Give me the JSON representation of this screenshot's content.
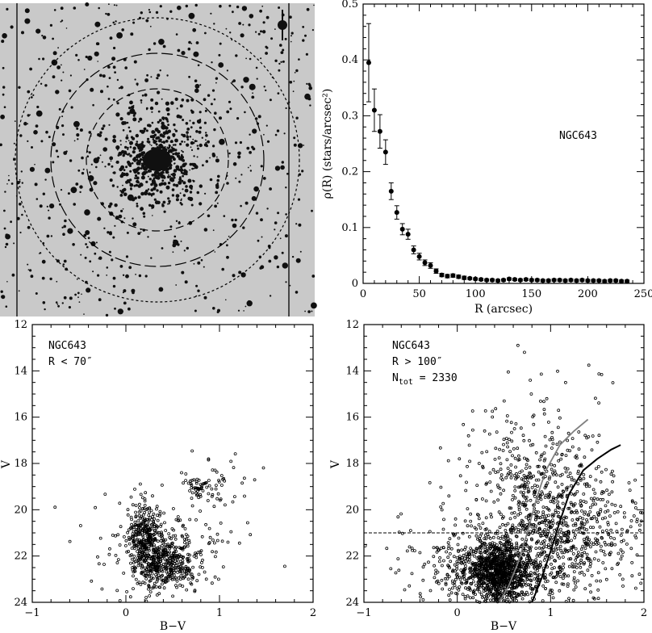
{
  "colors": {
    "sky": "#c9c9c9",
    "star": "#101010",
    "grey_curve": "#808080"
  },
  "image_panel": {
    "type": "image"
  },
  "chart_data": [
    {
      "type": "scatter",
      "id": "profile",
      "xlabel": "R (arcsec)",
      "ylabel": "ρ(R)  (stars/arcsec²)",
      "xlim": [
        0,
        250
      ],
      "ylim": [
        0,
        0.5
      ],
      "xticks": [
        0,
        50,
        100,
        150,
        200,
        250
      ],
      "yticks": [
        0,
        0.1,
        0.2,
        0.3,
        0.4,
        0.5
      ],
      "annotation": "NGC643",
      "series": [
        {
          "marker": "filled-circle+errorbar",
          "x": [
            5,
            10,
            15,
            20,
            25,
            30,
            35,
            40,
            45,
            50,
            55,
            60,
            65,
            70,
            75,
            80,
            85,
            90,
            95,
            100,
            105,
            110,
            115,
            120,
            125,
            130,
            135,
            140,
            145,
            150,
            155,
            160,
            165,
            170,
            175,
            180,
            185,
            190,
            195,
            200,
            205,
            210,
            215,
            220,
            225,
            230,
            235
          ],
          "y": [
            0.395,
            0.31,
            0.272,
            0.235,
            0.165,
            0.127,
            0.097,
            0.088,
            0.06,
            0.048,
            0.037,
            0.032,
            0.022,
            0.015,
            0.013,
            0.014,
            0.012,
            0.01,
            0.009,
            0.008,
            0.007,
            0.006,
            0.006,
            0.005,
            0.006,
            0.008,
            0.007,
            0.006,
            0.007,
            0.006,
            0.006,
            0.005,
            0.005,
            0.006,
            0.006,
            0.005,
            0.006,
            0.005,
            0.006,
            0.005,
            0.005,
            0.005,
            0.004,
            0.005,
            0.005,
            0.004,
            0.004
          ],
          "err": [
            0.07,
            0.038,
            0.03,
            0.022,
            0.015,
            0.012,
            0.01,
            0.009,
            0.007,
            0.006,
            0.005,
            0.005,
            0.004,
            0.003,
            0.003,
            0.003,
            0.003,
            0.003,
            0.002,
            0.002,
            0.002,
            0.002,
            0.002,
            0.002,
            0.002,
            0.002,
            0.002,
            0.002,
            0.002,
            0.002,
            0.002,
            0.002,
            0.002,
            0.002,
            0.002,
            0.002,
            0.002,
            0.002,
            0.002,
            0.002,
            0.002,
            0.002,
            0.002,
            0.002,
            0.002,
            0.002,
            0.002
          ]
        }
      ]
    },
    {
      "type": "scatter",
      "id": "cmd_inner",
      "xlabel": "B−V",
      "ylabel": "V",
      "xlim": [
        -1,
        2
      ],
      "ylim": [
        24,
        12
      ],
      "xticks": [
        -1,
        0,
        1,
        2
      ],
      "yticks": [
        12,
        14,
        16,
        18,
        20,
        22,
        24
      ],
      "annotation": [
        "NGC643",
        "R < 70″"
      ],
      "clumps": [
        {
          "x": 0.2,
          "y": 21.1,
          "sx": 0.09,
          "sy": 0.75,
          "n": 280
        },
        {
          "x": 0.4,
          "y": 22.3,
          "sx": 0.16,
          "sy": 0.6,
          "n": 380
        },
        {
          "x": 0.78,
          "y": 19.1,
          "sx": 0.06,
          "sy": 0.22,
          "n": 40
        },
        {
          "x": 0.45,
          "y": 21.8,
          "sx": 0.45,
          "sy": 1.1,
          "n": 170
        },
        {
          "x": 0.95,
          "y": 18.7,
          "sx": 0.2,
          "sy": 0.6,
          "n": 40
        }
      ]
    },
    {
      "type": "scatter",
      "id": "cmd_outer",
      "xlabel": "B−V",
      "ylabel": "V",
      "xlim": [
        -1,
        2
      ],
      "ylim": [
        24,
        12
      ],
      "xticks": [
        -1,
        0,
        1,
        2
      ],
      "yticks": [
        12,
        14,
        16,
        18,
        20,
        22,
        24
      ],
      "annotation": [
        "NGC643",
        "R > 100″",
        "N",
        "tot",
        " = 2330"
      ],
      "hline_y": 21,
      "clumps": [
        {
          "x": 0.45,
          "y": 22.7,
          "sx": 0.18,
          "sy": 0.6,
          "n": 900
        },
        {
          "x": 0.35,
          "y": 22.4,
          "sx": 0.4,
          "sy": 0.9,
          "n": 450
        },
        {
          "x": 1.15,
          "y": 20.9,
          "sx": 0.4,
          "sy": 1.4,
          "n": 620
        },
        {
          "x": 0.85,
          "y": 18.5,
          "sx": 0.35,
          "sy": 1.6,
          "n": 250
        },
        {
          "x": 0.6,
          "y": 20.5,
          "sx": 0.45,
          "sy": 1.8,
          "n": 110
        }
      ],
      "curves": [
        {
          "name": "grey",
          "color": "#808080",
          "x": [
            0.45,
            0.55,
            0.65,
            0.75,
            0.85,
            0.95,
            1.1,
            1.25,
            1.4
          ],
          "y": [
            24.0,
            23.3,
            22.3,
            21.0,
            19.5,
            18.3,
            17.2,
            16.6,
            16.1
          ]
        },
        {
          "name": "black",
          "color": "#000000",
          "x": [
            0.8,
            0.9,
            1.0,
            1.1,
            1.2,
            1.35,
            1.5,
            1.65,
            1.75
          ],
          "y": [
            24.0,
            23.0,
            21.8,
            20.5,
            19.3,
            18.3,
            17.8,
            17.4,
            17.2
          ]
        }
      ],
      "outliers": [
        {
          "x": 0.65,
          "y": 12.9
        },
        {
          "x": 0.72,
          "y": 13.2
        },
        {
          "x": -0.5,
          "y": 20.9
        }
      ]
    }
  ]
}
